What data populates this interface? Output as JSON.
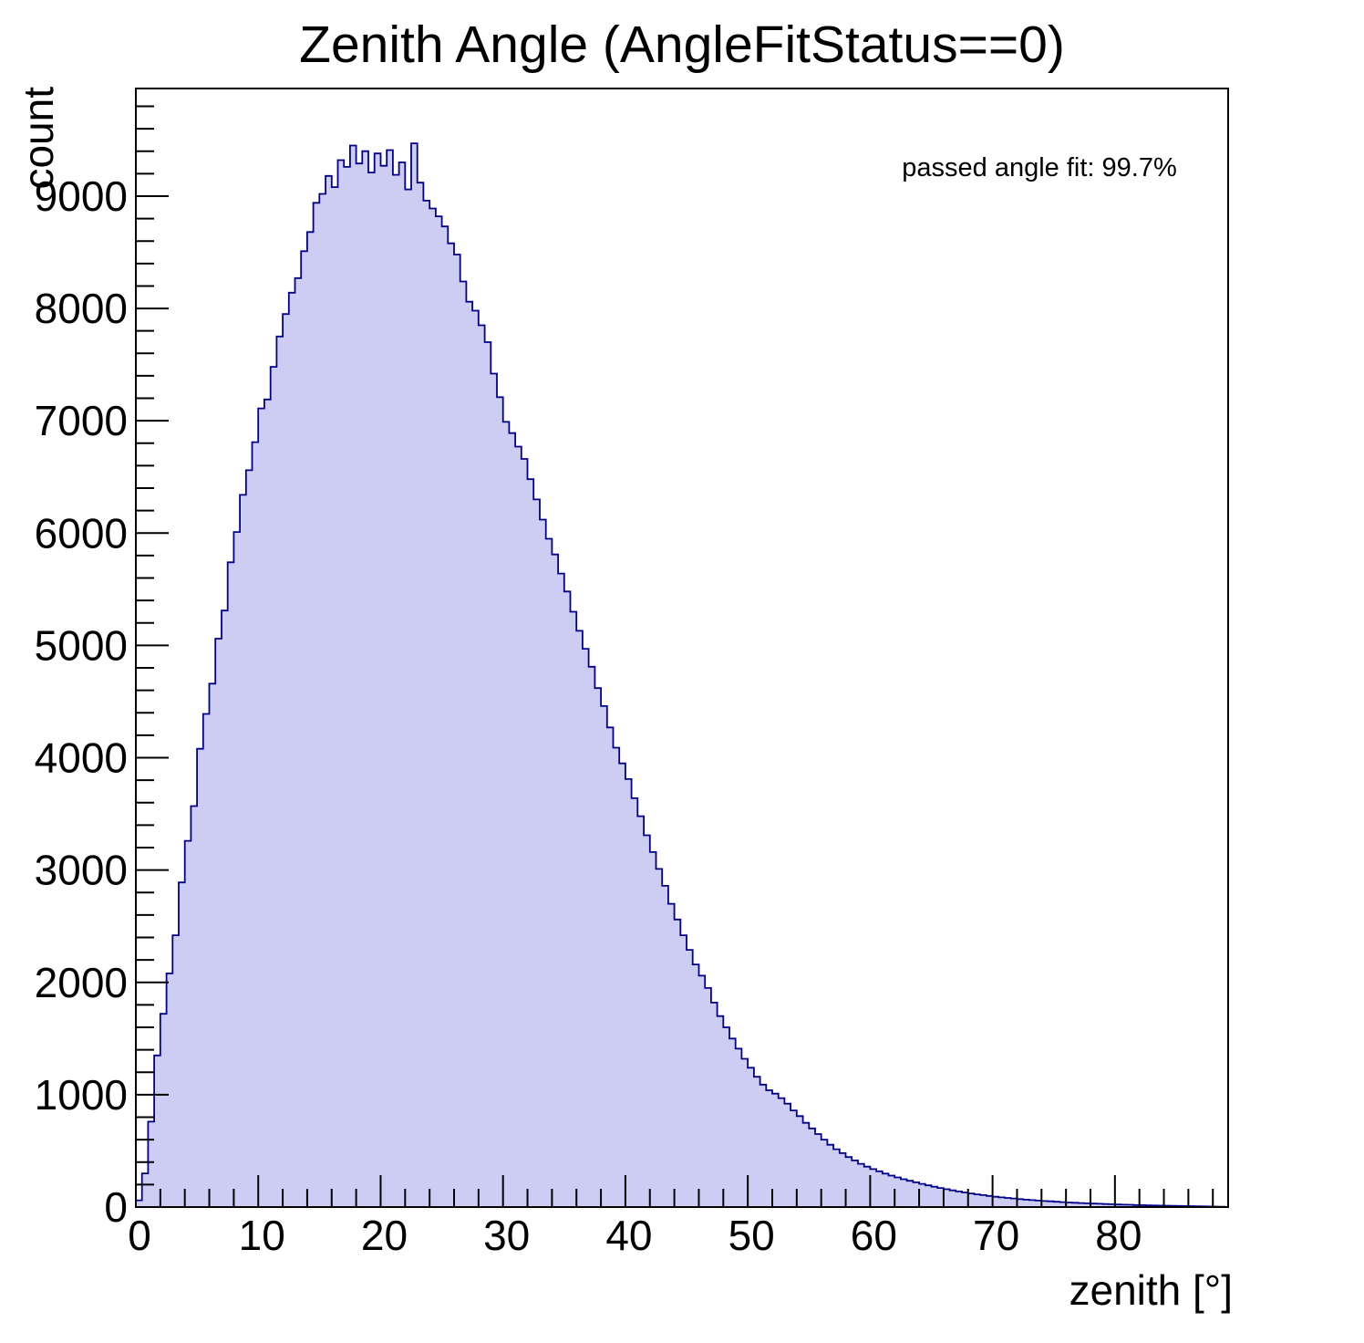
{
  "title": "Zenith Angle (AngleFitStatus==0)",
  "annotation": "passed angle fit: 99.7%",
  "colors": {
    "hist_fill": "#cdcdf4",
    "hist_line": "#00008b",
    "axis": "#000000"
  },
  "x_axis": {
    "label": "zenith [°]",
    "min": 0,
    "max": 89.25,
    "major_ticks": [
      0,
      10,
      20,
      30,
      40,
      50,
      60,
      70,
      80
    ],
    "minor_step": 2
  },
  "y_axis": {
    "label": "count",
    "min": 0,
    "max": 9958,
    "major_ticks": [
      0,
      1000,
      2000,
      3000,
      4000,
      5000,
      6000,
      7000,
      8000,
      9000
    ],
    "minor_step": 200
  },
  "chart_data": {
    "type": "bar",
    "style": "filled-step-histogram",
    "title": "Zenith Angle (AngleFitStatus==0)",
    "xlabel": "zenith [°]",
    "ylabel": "count",
    "xlim": [
      0,
      89.25
    ],
    "ylim": [
      0,
      9958
    ],
    "grid": false,
    "legend": "none",
    "bin_start": 0,
    "bin_width": 0.5,
    "values": [
      60,
      300,
      760,
      1350,
      1720,
      2080,
      2420,
      2890,
      3260,
      3570,
      4080,
      4390,
      4660,
      5060,
      5310,
      5740,
      6010,
      6340,
      6560,
      6810,
      7110,
      7190,
      7480,
      7750,
      7950,
      8140,
      8270,
      8510,
      8680,
      8940,
      9020,
      9180,
      9080,
      9320,
      9260,
      9450,
      9290,
      9400,
      9210,
      9380,
      9270,
      9410,
      9190,
      9300,
      9060,
      9470,
      9120,
      8960,
      8890,
      8820,
      8730,
      8580,
      8480,
      8240,
      8060,
      7980,
      7850,
      7700,
      7420,
      7210,
      6990,
      6890,
      6770,
      6660,
      6480,
      6300,
      6120,
      5950,
      5810,
      5640,
      5480,
      5300,
      5130,
      4970,
      4810,
      4620,
      4460,
      4270,
      4090,
      3950,
      3810,
      3640,
      3480,
      3310,
      3160,
      3010,
      2860,
      2700,
      2560,
      2420,
      2290,
      2160,
      2060,
      1950,
      1820,
      1700,
      1600,
      1500,
      1410,
      1320,
      1240,
      1160,
      1090,
      1040,
      1010,
      970,
      920,
      860,
      810,
      750,
      700,
      650,
      600,
      555,
      515,
      480,
      445,
      415,
      385,
      360,
      338,
      318,
      298,
      280,
      264,
      248,
      234,
      220,
      206,
      193,
      181,
      170,
      159,
      149,
      139,
      130,
      121,
      113,
      106,
      99,
      92,
      86,
      81,
      76,
      71,
      66,
      62,
      58,
      54,
      51,
      47,
      44,
      41,
      38,
      36,
      33,
      31,
      29,
      27,
      25,
      23,
      21,
      20,
      18,
      17,
      15,
      14,
      13,
      12,
      11,
      10,
      9,
      8,
      7,
      6,
      5,
      4,
      3
    ]
  }
}
